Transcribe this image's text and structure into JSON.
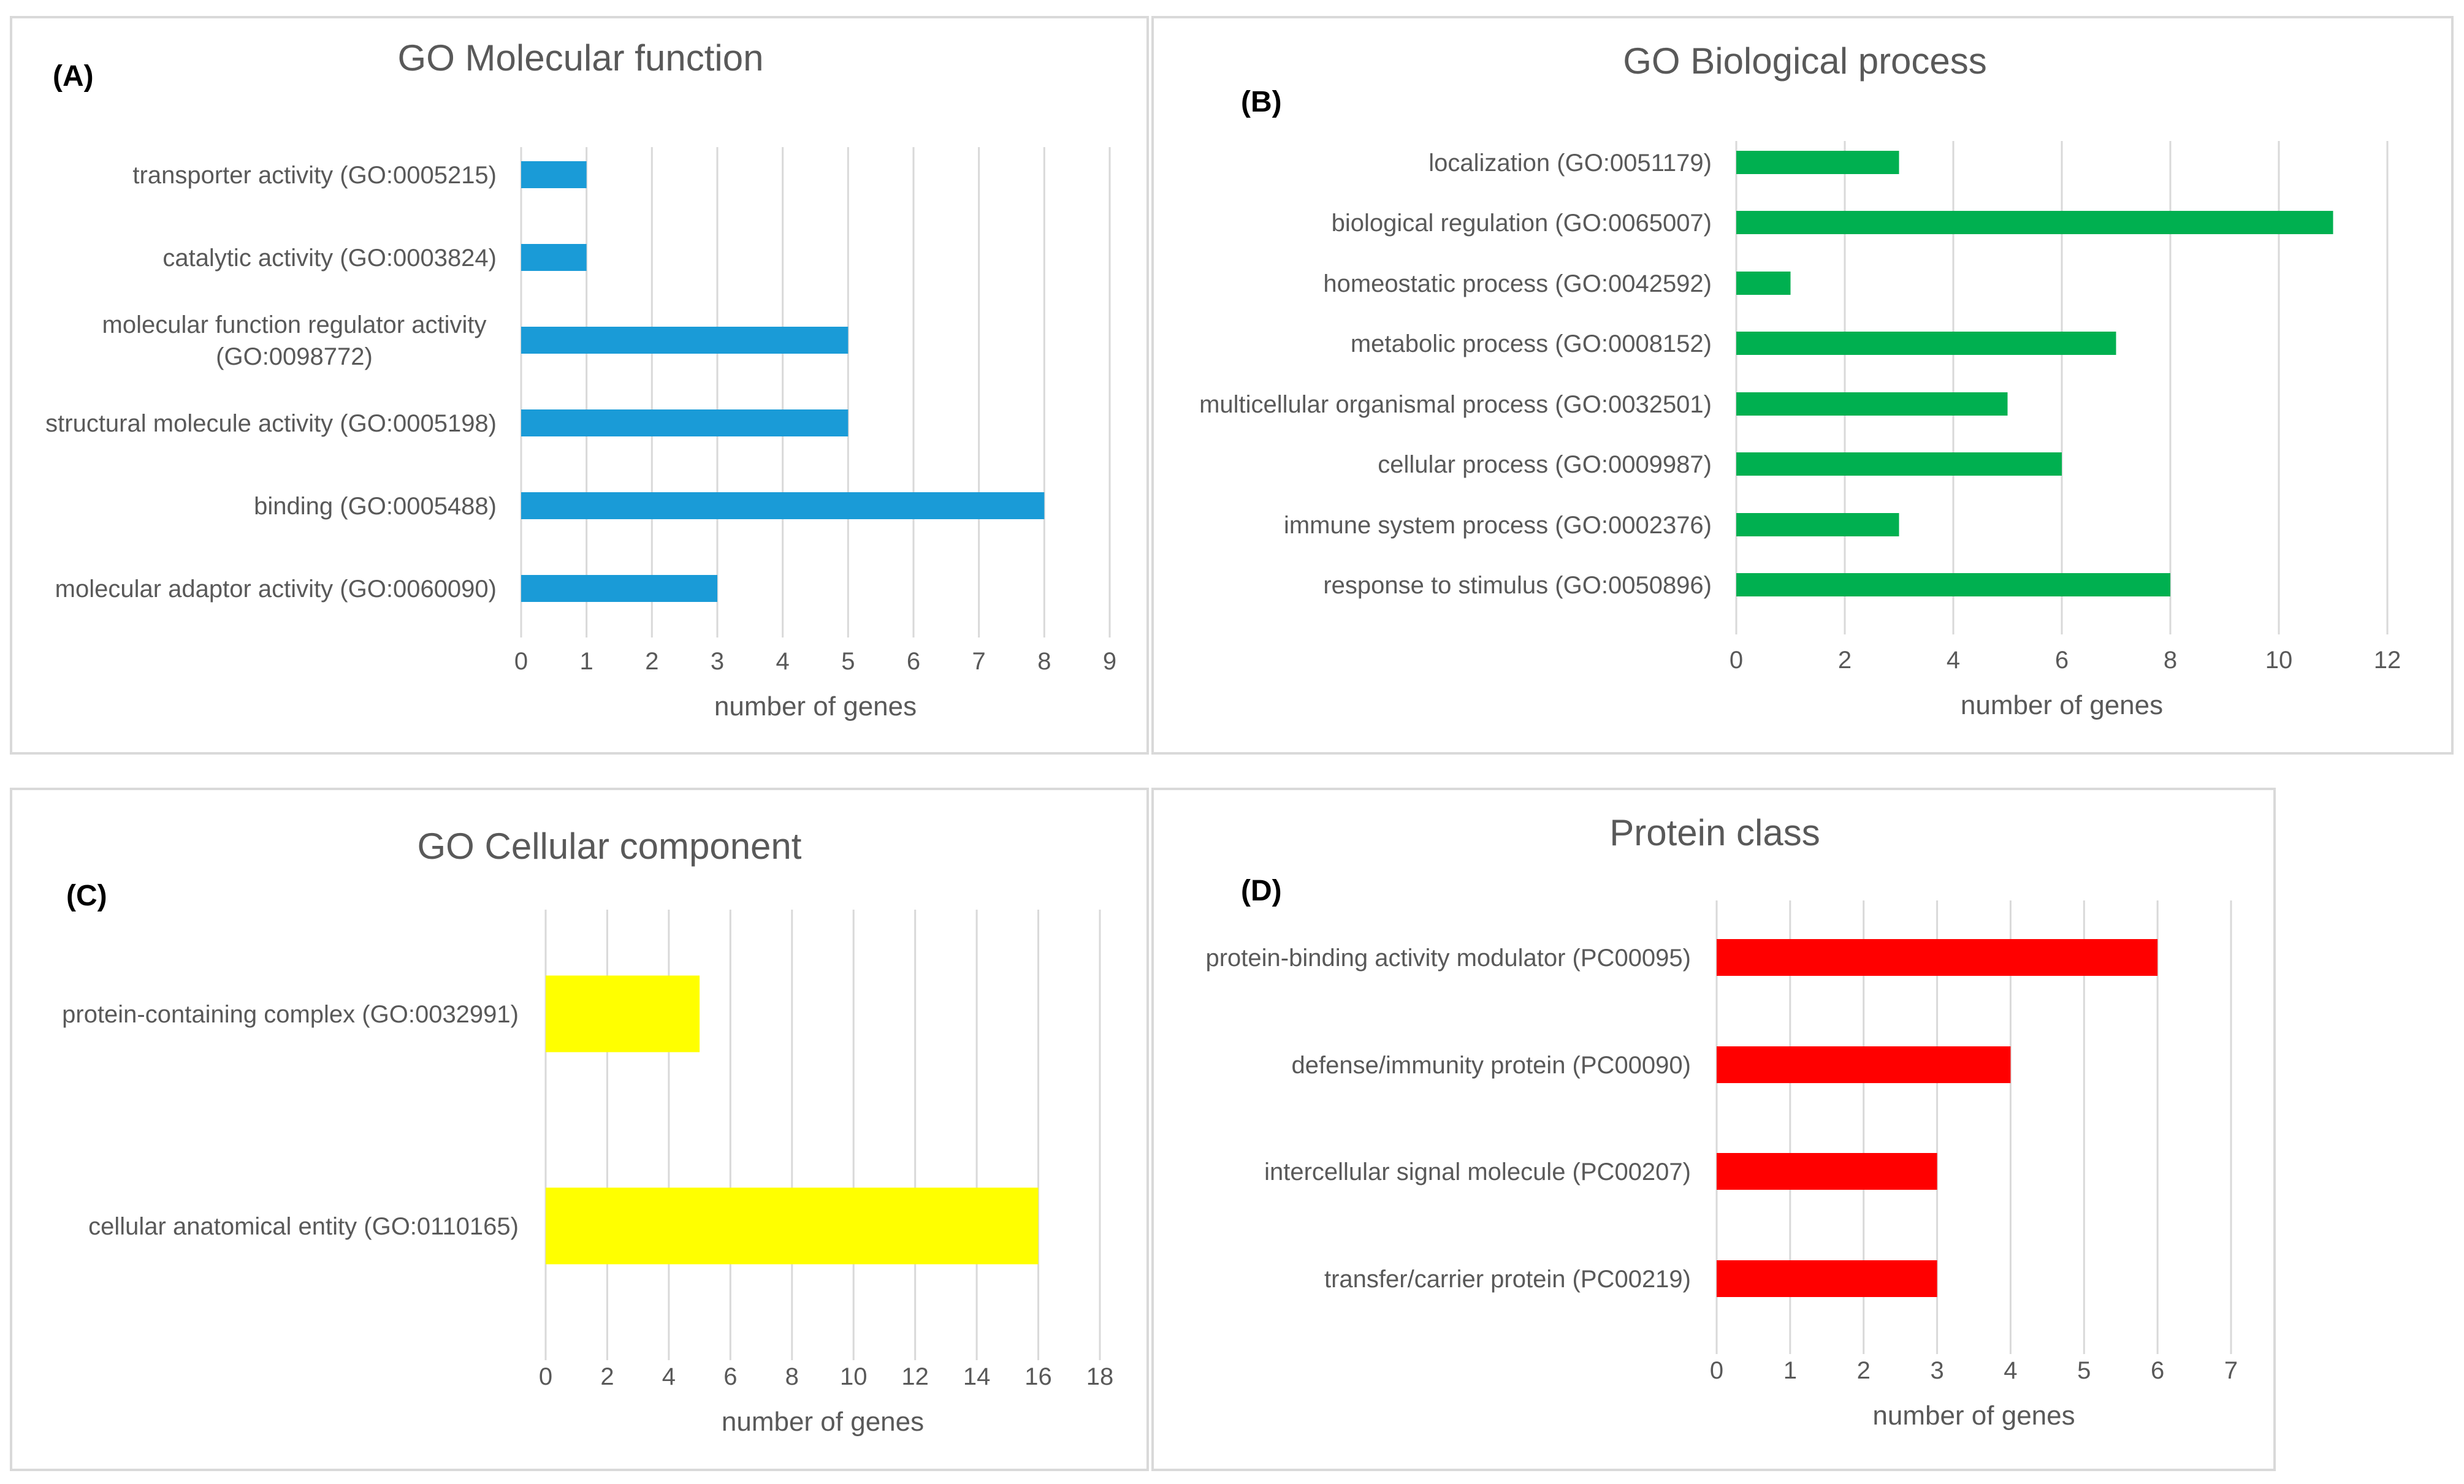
{
  "chart_data": [
    {
      "type": "bar",
      "orientation": "horizontal",
      "panel_label": "(A)",
      "title": "GO Molecular function",
      "categories": [
        [
          "transporter activity (GO:0005215)"
        ],
        [
          "catalytic activity (GO:0003824)"
        ],
        [
          "molecular function regulator activity",
          "(GO:0098772)"
        ],
        [
          "structural molecule activity (GO:0005198)"
        ],
        [
          "binding (GO:0005488)"
        ],
        [
          "molecular adaptor activity (GO:0060090)"
        ]
      ],
      "values": [
        1,
        1,
        5,
        5,
        8,
        3
      ],
      "ticks": [
        "0",
        "1",
        "2",
        "3",
        "4",
        "5",
        "6",
        "7",
        "8",
        "9"
      ],
      "xlim": [
        0,
        9
      ],
      "xlabel": "number of genes",
      "color": "#1a9bd7"
    },
    {
      "type": "bar",
      "orientation": "horizontal",
      "panel_label": "(B)",
      "title": "GO Biological process",
      "categories": [
        [
          "localization (GO:0051179)"
        ],
        [
          "biological regulation (GO:0065007)"
        ],
        [
          "homeostatic process (GO:0042592)"
        ],
        [
          "metabolic process (GO:0008152)"
        ],
        [
          "multicellular organismal process (GO:0032501)"
        ],
        [
          "cellular process (GO:0009987)"
        ],
        [
          "immune system process (GO:0002376)"
        ],
        [
          "response to stimulus (GO:0050896)"
        ]
      ],
      "values": [
        3,
        11,
        1,
        7,
        5,
        6,
        3,
        8
      ],
      "ticks": [
        "0",
        "2",
        "4",
        "6",
        "8",
        "10",
        "12"
      ],
      "xlim": [
        0,
        12
      ],
      "xlabel": "number of genes",
      "color": "#00b050"
    },
    {
      "type": "bar",
      "orientation": "horizontal",
      "panel_label": "(C)",
      "title": "GO Cellular component",
      "categories": [
        [
          "protein-containing complex (GO:0032991)"
        ],
        [
          "cellular anatomical entity (GO:0110165)"
        ]
      ],
      "values": [
        5,
        16
      ],
      "ticks": [
        "0",
        "2",
        "4",
        "6",
        "8",
        "10",
        "12",
        "14",
        "16",
        "18"
      ],
      "xlim": [
        0,
        18
      ],
      "xlabel": "number of genes",
      "color": "#ffff00"
    },
    {
      "type": "bar",
      "orientation": "horizontal",
      "panel_label": "(D)",
      "title": "Protein class",
      "categories": [
        [
          "protein-binding activity modulator (PC00095)"
        ],
        [
          "defense/immunity protein (PC00090)"
        ],
        [
          "intercellular signal molecule (PC00207)"
        ],
        [
          "transfer/carrier protein (PC00219)"
        ]
      ],
      "values": [
        6,
        4,
        3,
        3
      ],
      "ticks": [
        "0",
        "1",
        "2",
        "3",
        "4",
        "5",
        "6",
        "7"
      ],
      "xlim": [
        0,
        7
      ],
      "xlabel": "number of genes",
      "color": "#ff0000"
    }
  ]
}
